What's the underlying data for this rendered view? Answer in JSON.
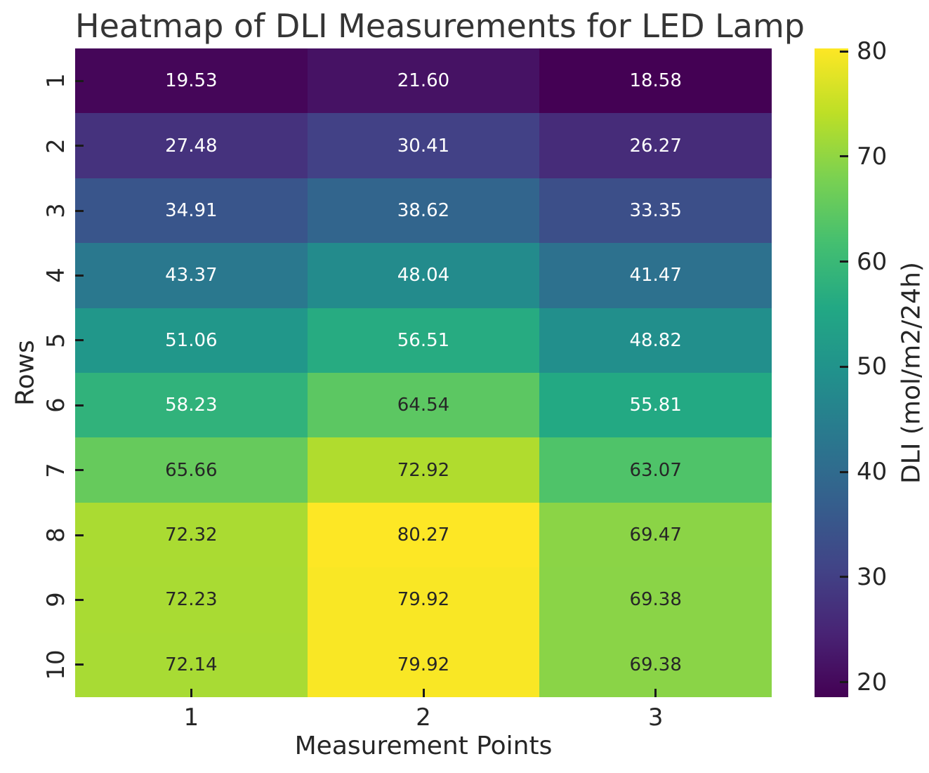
{
  "title": "Heatmap of DLI Measurements for LED Lamp",
  "x_axis": {
    "label": "Measurement Points",
    "tick_labels": [
      "1",
      "2",
      "3"
    ]
  },
  "y_axis": {
    "label": "Rows",
    "tick_labels": [
      "1",
      "2",
      "3",
      "4",
      "5",
      "6",
      "7",
      "8",
      "9",
      "10"
    ]
  },
  "colorbar": {
    "label": "DLI (mol/m2/24h)",
    "ticks": [
      80,
      70,
      60,
      50,
      40,
      30,
      20
    ]
  },
  "chart_data": {
    "type": "heatmap",
    "title": "Heatmap of DLI Measurements for LED Lamp",
    "xlabel": "Measurement Points",
    "ylabel": "Rows",
    "colorbar_label": "DLI (mol/m2/24h)",
    "x_tick_labels": [
      "1",
      "2",
      "3"
    ],
    "y_tick_labels": [
      "1",
      "2",
      "3",
      "4",
      "5",
      "6",
      "7",
      "8",
      "9",
      "10"
    ],
    "colorbar_ticks": [
      80,
      70,
      60,
      50,
      40,
      30,
      20
    ],
    "values": [
      [
        19.53,
        21.6,
        18.58
      ],
      [
        27.48,
        30.41,
        26.27
      ],
      [
        34.91,
        38.62,
        33.35
      ],
      [
        43.37,
        48.04,
        41.47
      ],
      [
        51.06,
        56.51,
        48.82
      ],
      [
        58.23,
        64.54,
        55.81
      ],
      [
        65.66,
        72.92,
        63.07
      ],
      [
        72.32,
        80.27,
        69.47
      ],
      [
        72.23,
        79.92,
        69.38
      ],
      [
        72.14,
        79.92,
        69.38
      ]
    ],
    "vmin": 18.58,
    "vmax": 80.27,
    "colormap": "viridis",
    "annotation_decimals": 2,
    "legend_position": "right-colorbar",
    "grid": false
  },
  "colors": {
    "viridis_stops": [
      "#440154",
      "#482475",
      "#414487",
      "#355f8d",
      "#2a788e",
      "#21918c",
      "#22a884",
      "#44bf70",
      "#7ad151",
      "#bddf26",
      "#fde725"
    ],
    "annotation_dark": "#262626",
    "annotation_light": "#ffffff",
    "axis_text": "#262626",
    "tick_mark": "#1a1a1a",
    "background": "#ffffff"
  }
}
